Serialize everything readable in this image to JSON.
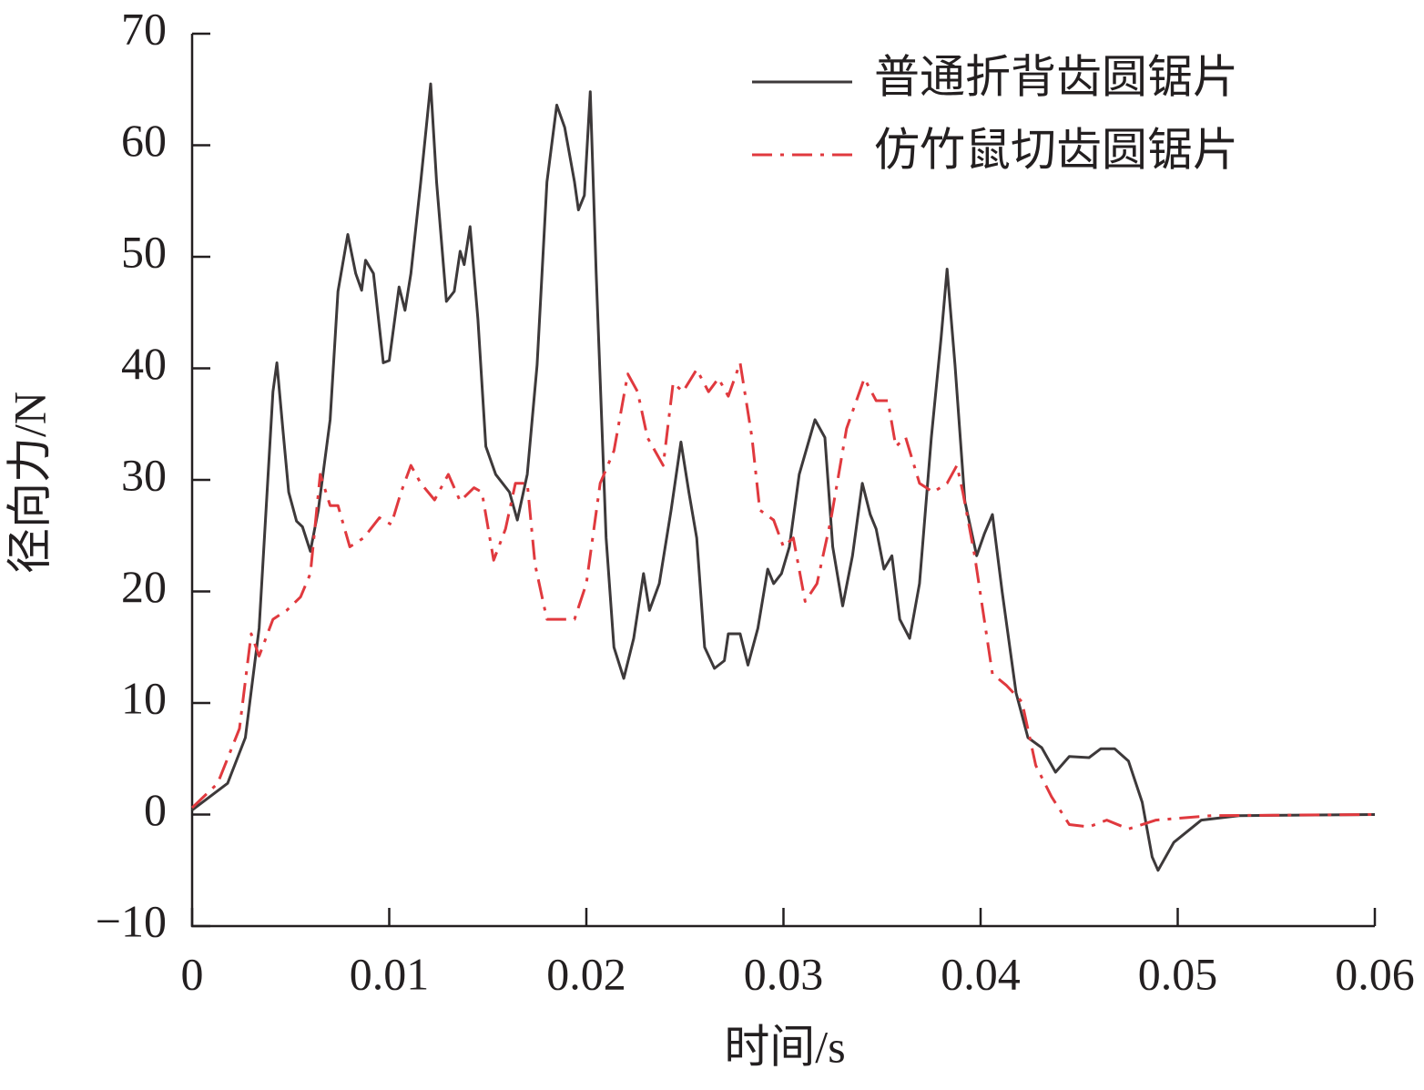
{
  "chart_data": {
    "type": "line",
    "xlabel": "时间/s",
    "ylabel": "径向力/N",
    "xlim": [
      0,
      0.06
    ],
    "xticks": [
      0,
      0.01,
      0.02,
      0.03,
      0.04,
      0.05,
      0.06
    ],
    "ylim": [
      -10,
      70
    ],
    "yticks": [
      {
        "value": -10,
        "label": "−10"
      },
      0,
      10,
      20,
      30,
      40,
      50,
      60,
      70
    ],
    "legend": "upper right",
    "series": [
      {
        "name": "普通折背齿圆锯片",
        "color": "#3d393a",
        "style": "solid",
        "x": [
          0,
          0.0018,
          0.0027,
          0.0034,
          0.0041,
          0.0043,
          0.0046,
          0.0049,
          0.0053,
          0.0056,
          0.006,
          0.0064,
          0.007,
          0.0074,
          0.0079,
          0.0083,
          0.0086,
          0.0088,
          0.0092,
          0.0097,
          0.01,
          0.0105,
          0.0108,
          0.0111,
          0.0116,
          0.0121,
          0.0124,
          0.0129,
          0.0133,
          0.0136,
          0.0138,
          0.0141,
          0.0145,
          0.0149,
          0.0154,
          0.0161,
          0.0165,
          0.017,
          0.0175,
          0.018,
          0.0185,
          0.0189,
          0.0194,
          0.0196,
          0.0199,
          0.0202,
          0.0205,
          0.021,
          0.0214,
          0.0219,
          0.0224,
          0.0229,
          0.0232,
          0.0237,
          0.0243,
          0.0248,
          0.0252,
          0.0256,
          0.026,
          0.0265,
          0.027,
          0.0272,
          0.0278,
          0.0282,
          0.0287,
          0.0292,
          0.0295,
          0.0299,
          0.0303,
          0.0308,
          0.0316,
          0.0321,
          0.0325,
          0.033,
          0.0335,
          0.034,
          0.0344,
          0.0347,
          0.0351,
          0.0355,
          0.0359,
          0.0364,
          0.0369,
          0.0375,
          0.038,
          0.0383,
          0.0387,
          0.0392,
          0.0398,
          0.0402,
          0.0406,
          0.0411,
          0.0418,
          0.0424,
          0.0431,
          0.0438,
          0.0445,
          0.0455,
          0.0461,
          0.0468,
          0.0475,
          0.0482,
          0.0487,
          0.049,
          0.0498,
          0.0512,
          0.0531,
          0.06
        ],
        "values": [
          0.4,
          2.8,
          6.9,
          16.7,
          37.9,
          40.5,
          34.6,
          28.9,
          26.3,
          25.8,
          23.6,
          27.3,
          35.4,
          46.9,
          52,
          48.5,
          47,
          49.7,
          48.5,
          40.5,
          40.7,
          47.3,
          45.2,
          48.5,
          56.7,
          65.5,
          56.7,
          46,
          46.9,
          50.5,
          49.3,
          52.7,
          44.4,
          33,
          30.5,
          28.9,
          26.4,
          30.5,
          40.3,
          56.7,
          63.6,
          61.6,
          56.7,
          54.2,
          55.5,
          64.8,
          48.5,
          24.8,
          15,
          12.2,
          15.8,
          21.6,
          18.3,
          20.7,
          27.3,
          33.4,
          28.9,
          24.8,
          15,
          13.1,
          13.8,
          16.2,
          16.2,
          13.4,
          16.7,
          22,
          20.7,
          21.6,
          24,
          30.5,
          35.4,
          33.8,
          24,
          18.7,
          23.2,
          29.7,
          26.9,
          25.6,
          22,
          23.2,
          17.5,
          15.8,
          20.7,
          33.8,
          42.8,
          48.9,
          40.3,
          28.1,
          23.2,
          25.2,
          26.9,
          19.9,
          10.9,
          6.9,
          6,
          3.8,
          5.2,
          5.1,
          5.9,
          5.9,
          4.8,
          1.1,
          -3.8,
          -5,
          -2.5,
          -0.5,
          -0.1,
          0
        ]
      },
      {
        "name": "仿竹鼠切齿圆锯片",
        "color": "#e0393e",
        "style": "dashdot",
        "x": [
          0,
          0.0013,
          0.0024,
          0.003,
          0.0034,
          0.0041,
          0.0048,
          0.0055,
          0.006,
          0.0065,
          0.007,
          0.0074,
          0.008,
          0.0087,
          0.0095,
          0.0101,
          0.0106,
          0.0111,
          0.0116,
          0.0123,
          0.013,
          0.0136,
          0.0143,
          0.0147,
          0.0153,
          0.0159,
          0.0164,
          0.017,
          0.0174,
          0.018,
          0.0188,
          0.0194,
          0.02,
          0.0207,
          0.0214,
          0.0221,
          0.0226,
          0.0231,
          0.0239,
          0.0244,
          0.0249,
          0.0256,
          0.0262,
          0.0267,
          0.0272,
          0.0278,
          0.0284,
          0.0288,
          0.0295,
          0.03,
          0.0305,
          0.0311,
          0.0317,
          0.0324,
          0.0332,
          0.0341,
          0.0347,
          0.0353,
          0.0357,
          0.0362,
          0.0369,
          0.0376,
          0.0383,
          0.0388,
          0.0391,
          0.0397,
          0.0406,
          0.0413,
          0.0421,
          0.0428,
          0.0436,
          0.0445,
          0.0455,
          0.0464,
          0.0475,
          0.0489,
          0.0517,
          0.06
        ],
        "values": [
          0.6,
          2.8,
          7.7,
          16.2,
          14.2,
          17.5,
          18.3,
          19.5,
          21.6,
          30.5,
          27.7,
          27.7,
          24,
          24.8,
          26.6,
          26,
          28.9,
          31.3,
          29.7,
          28.2,
          30.5,
          28.1,
          29.3,
          28.9,
          22.8,
          25.6,
          29.7,
          29.7,
          22.4,
          17.5,
          17.5,
          17.5,
          20.7,
          29.7,
          32.6,
          39.5,
          37.9,
          33.8,
          31.3,
          38.7,
          37.9,
          39.9,
          37.9,
          39.1,
          37.5,
          40.5,
          33.8,
          27.3,
          26.4,
          24,
          24.8,
          19.1,
          20.7,
          26.4,
          34.6,
          39.1,
          37.1,
          37.1,
          33,
          33.8,
          29.7,
          28.9,
          29.7,
          31.3,
          28.9,
          23.2,
          12.6,
          11.6,
          10.1,
          4.4,
          1.6,
          -0.9,
          -1.1,
          -0.5,
          -1.3,
          -0.5,
          -0.1,
          0
        ]
      }
    ]
  }
}
